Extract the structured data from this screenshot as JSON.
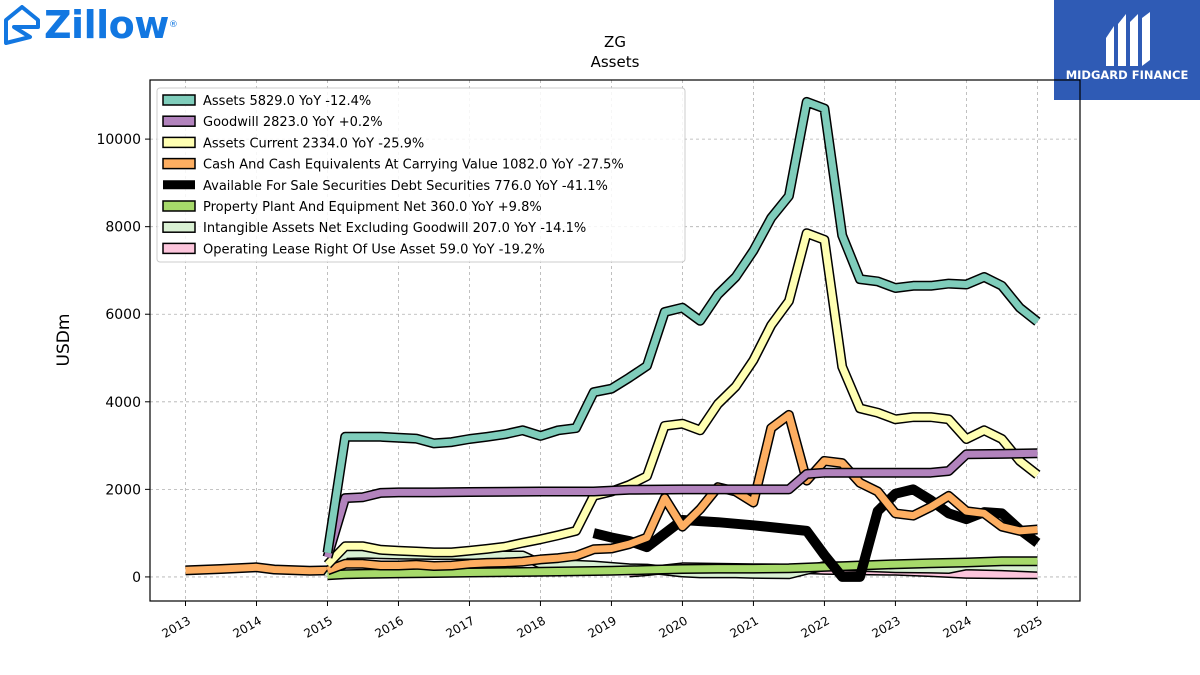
{
  "brand": {
    "name": "Zillow",
    "reg_mark": "®",
    "icon": "zillow-house-icon",
    "color": "#1277e1"
  },
  "partner": {
    "name": "MIDGARD FINANCE",
    "bg": "#2f5bb5",
    "icon": "midgard-logo-icon"
  },
  "chart_data": {
    "type": "line",
    "title": "ZG",
    "subtitle": "Assets",
    "ylabel": "USDm",
    "xlabel": "",
    "xlim": [
      2012.5,
      2025.6
    ],
    "ylim": [
      -550,
      11350
    ],
    "yticks": [
      0,
      2000,
      4000,
      6000,
      8000,
      10000
    ],
    "xticks": [
      "2013",
      "2014",
      "2015",
      "2016",
      "2017",
      "2018",
      "2019",
      "2020",
      "2021",
      "2022",
      "2023",
      "2024",
      "2025"
    ],
    "grid": true,
    "legend_position": "top-left",
    "series": [
      {
        "name": "Assets",
        "legend": "Assets  5829.0 YoY -12.4%",
        "color": "#7fcdbb",
        "width": 7,
        "points": [
          [
            2015.0,
            550
          ],
          [
            2015.25,
            3200
          ],
          [
            2015.5,
            3200
          ],
          [
            2015.75,
            3200
          ],
          [
            2016.0,
            3180
          ],
          [
            2016.25,
            3160
          ],
          [
            2016.5,
            3050
          ],
          [
            2016.75,
            3080
          ],
          [
            2017.0,
            3150
          ],
          [
            2017.25,
            3200
          ],
          [
            2017.5,
            3260
          ],
          [
            2017.75,
            3350
          ],
          [
            2018.0,
            3220
          ],
          [
            2018.25,
            3350
          ],
          [
            2018.5,
            3400
          ],
          [
            2018.75,
            4220
          ],
          [
            2019.0,
            4300
          ],
          [
            2019.25,
            4550
          ],
          [
            2019.5,
            4820
          ],
          [
            2019.75,
            6050
          ],
          [
            2020.0,
            6150
          ],
          [
            2020.25,
            5850
          ],
          [
            2020.5,
            6450
          ],
          [
            2020.75,
            6850
          ],
          [
            2021.0,
            7450
          ],
          [
            2021.25,
            8200
          ],
          [
            2021.5,
            8700
          ],
          [
            2021.75,
            10850
          ],
          [
            2022.0,
            10700
          ],
          [
            2022.25,
            7800
          ],
          [
            2022.5,
            6800
          ],
          [
            2022.75,
            6750
          ],
          [
            2023.0,
            6600
          ],
          [
            2023.25,
            6650
          ],
          [
            2023.5,
            6650
          ],
          [
            2023.75,
            6700
          ],
          [
            2024.0,
            6680
          ],
          [
            2024.25,
            6850
          ],
          [
            2024.5,
            6650
          ],
          [
            2024.75,
            6150
          ],
          [
            2025.0,
            5829
          ]
        ]
      },
      {
        "name": "Goodwill",
        "legend": "Goodwill  2823.0 YoY +0.2%",
        "color": "#b283bd",
        "width": 7,
        "points": [
          [
            2015.0,
            450
          ],
          [
            2015.25,
            1800
          ],
          [
            2015.5,
            1820
          ],
          [
            2015.75,
            1920
          ],
          [
            2016.0,
            1930
          ],
          [
            2016.5,
            1930
          ],
          [
            2017.0,
            1940
          ],
          [
            2018.0,
            1950
          ],
          [
            2018.75,
            1950
          ],
          [
            2019.25,
            1990
          ],
          [
            2020.0,
            2000
          ],
          [
            2021.0,
            2000
          ],
          [
            2021.5,
            2000
          ],
          [
            2021.75,
            2350
          ],
          [
            2022.0,
            2380
          ],
          [
            2022.5,
            2380
          ],
          [
            2023.0,
            2380
          ],
          [
            2023.5,
            2380
          ],
          [
            2023.75,
            2420
          ],
          [
            2024.0,
            2800
          ],
          [
            2024.5,
            2810
          ],
          [
            2025.0,
            2823
          ]
        ]
      },
      {
        "name": "Assets Current",
        "legend": "Assets Current  2334.0 YoY -25.9%",
        "color": "#ffffb2",
        "width": 7,
        "points": [
          [
            2015.0,
            280
          ],
          [
            2015.25,
            700
          ],
          [
            2015.5,
            700
          ],
          [
            2015.75,
            620
          ],
          [
            2016.0,
            600
          ],
          [
            2016.25,
            580
          ],
          [
            2016.5,
            560
          ],
          [
            2016.75,
            560
          ],
          [
            2017.0,
            600
          ],
          [
            2017.25,
            640
          ],
          [
            2017.5,
            690
          ],
          [
            2017.75,
            780
          ],
          [
            2018.0,
            860
          ],
          [
            2018.25,
            950
          ],
          [
            2018.5,
            1050
          ],
          [
            2018.75,
            1850
          ],
          [
            2019.0,
            1950
          ],
          [
            2019.25,
            2100
          ],
          [
            2019.5,
            2300
          ],
          [
            2019.75,
            3450
          ],
          [
            2020.0,
            3500
          ],
          [
            2020.25,
            3350
          ],
          [
            2020.5,
            3950
          ],
          [
            2020.75,
            4350
          ],
          [
            2021.0,
            4950
          ],
          [
            2021.25,
            5750
          ],
          [
            2021.5,
            6300
          ],
          [
            2021.75,
            7850
          ],
          [
            2022.0,
            7700
          ],
          [
            2022.25,
            4800
          ],
          [
            2022.5,
            3850
          ],
          [
            2022.75,
            3750
          ],
          [
            2023.0,
            3600
          ],
          [
            2023.25,
            3650
          ],
          [
            2023.5,
            3650
          ],
          [
            2023.75,
            3600
          ],
          [
            2024.0,
            3150
          ],
          [
            2024.25,
            3350
          ],
          [
            2024.5,
            3150
          ],
          [
            2024.75,
            2650
          ],
          [
            2025.0,
            2334
          ]
        ]
      },
      {
        "name": "Cash And Cash Equivalents At Carrying Value",
        "legend": "Cash And Cash Equivalents At Carrying Value  1082.0 YoY -27.5%",
        "color": "#fdae61",
        "width": 7,
        "points": [
          [
            2015.0,
            150
          ],
          [
            2015.25,
            300
          ],
          [
            2015.5,
            300
          ],
          [
            2015.75,
            260
          ],
          [
            2016.0,
            260
          ],
          [
            2016.25,
            280
          ],
          [
            2016.5,
            250
          ],
          [
            2016.75,
            260
          ],
          [
            2017.0,
            300
          ],
          [
            2017.25,
            320
          ],
          [
            2017.5,
            330
          ],
          [
            2017.75,
            350
          ],
          [
            2018.0,
            400
          ],
          [
            2018.25,
            430
          ],
          [
            2018.5,
            480
          ],
          [
            2018.75,
            630
          ],
          [
            2019.0,
            650
          ],
          [
            2019.25,
            750
          ],
          [
            2019.5,
            900
          ],
          [
            2019.75,
            1800
          ],
          [
            2020.0,
            1150
          ],
          [
            2020.25,
            1550
          ],
          [
            2020.5,
            2050
          ],
          [
            2020.75,
            1950
          ],
          [
            2021.0,
            1700
          ],
          [
            2021.25,
            3400
          ],
          [
            2021.5,
            3700
          ],
          [
            2021.75,
            2200
          ],
          [
            2022.0,
            2650
          ],
          [
            2022.25,
            2600
          ],
          [
            2022.5,
            2150
          ],
          [
            2022.75,
            1950
          ],
          [
            2023.0,
            1450
          ],
          [
            2023.25,
            1400
          ],
          [
            2023.5,
            1600
          ],
          [
            2023.75,
            1850
          ],
          [
            2024.0,
            1500
          ],
          [
            2024.25,
            1450
          ],
          [
            2024.5,
            1150
          ],
          [
            2024.75,
            1050
          ],
          [
            2025.0,
            1082
          ]
        ]
      },
      {
        "name": "Available For Sale Securities Debt Securities",
        "legend": "Available For Sale Securities Debt Securities  776.0 YoY -41.1%",
        "color": "#000000",
        "width": 10,
        "points": [
          [
            2018.75,
            1000
          ],
          [
            2019.0,
            900
          ],
          [
            2019.25,
            820
          ],
          [
            2019.5,
            680
          ],
          [
            2020.0,
            1300
          ],
          [
            2020.5,
            1250
          ],
          [
            2021.0,
            1180
          ],
          [
            2021.75,
            1050
          ],
          [
            2022.0,
            500
          ],
          [
            2022.25,
            0
          ],
          [
            2022.5,
            0
          ],
          [
            2022.75,
            1500
          ],
          [
            2023.0,
            1900
          ],
          [
            2023.25,
            2000
          ],
          [
            2023.5,
            1750
          ],
          [
            2023.75,
            1450
          ],
          [
            2024.0,
            1320
          ],
          [
            2024.25,
            1480
          ],
          [
            2024.5,
            1450
          ],
          [
            2024.75,
            1080
          ],
          [
            2025.0,
            776
          ]
        ]
      },
      {
        "name": "Property Plant And Equipment Net",
        "legend": "Property Plant And Equipment Net  360.0 YoY +9.8%",
        "color": "#a6d96a",
        "width": 7,
        "points": [
          [
            2015.0,
            40
          ],
          [
            2015.25,
            60
          ],
          [
            2015.5,
            70
          ],
          [
            2016.0,
            80
          ],
          [
            2016.5,
            90
          ],
          [
            2017.0,
            100
          ],
          [
            2017.5,
            110
          ],
          [
            2018.0,
            120
          ],
          [
            2018.5,
            130
          ],
          [
            2019.0,
            140
          ],
          [
            2019.5,
            160
          ],
          [
            2020.0,
            180
          ],
          [
            2020.5,
            190
          ],
          [
            2021.0,
            190
          ],
          [
            2021.5,
            200
          ],
          [
            2022.0,
            230
          ],
          [
            2022.5,
            260
          ],
          [
            2023.0,
            290
          ],
          [
            2023.5,
            310
          ],
          [
            2024.0,
            330
          ],
          [
            2024.5,
            360
          ],
          [
            2025.0,
            360
          ]
        ]
      },
      {
        "name": "Intangible Assets Net Excluding Goodwill",
        "legend": "Intangible Assets Net Excluding Goodwill  207.0 YoY -14.1%",
        "color": "#d9f0d3",
        "width": 7,
        "points": [
          [
            2015.0,
            0
          ],
          [
            2015.25,
            520
          ],
          [
            2015.5,
            530
          ],
          [
            2015.75,
            520
          ],
          [
            2016.0,
            510
          ],
          [
            2016.5,
            500
          ],
          [
            2017.0,
            500
          ],
          [
            2017.5,
            490
          ],
          [
            2017.75,
            490
          ],
          [
            2018.0,
            300
          ],
          [
            2018.5,
            280
          ],
          [
            2018.75,
            260
          ],
          [
            2019.0,
            230
          ],
          [
            2019.25,
            200
          ],
          [
            2019.5,
            190
          ],
          [
            2020.0,
            100
          ],
          [
            2020.25,
            80
          ],
          [
            2020.75,
            80
          ],
          [
            2021.0,
            70
          ],
          [
            2021.5,
            60
          ],
          [
            2021.75,
            160
          ],
          [
            2022.0,
            250
          ],
          [
            2022.5,
            230
          ],
          [
            2023.0,
            200
          ],
          [
            2023.5,
            190
          ],
          [
            2023.75,
            180
          ],
          [
            2024.0,
            260
          ],
          [
            2024.5,
            240
          ],
          [
            2025.0,
            207
          ]
        ]
      },
      {
        "name": "Operating Lease Right Of Use Asset",
        "legend": "Operating Lease Right Of Use Asset  59.0 YoY -19.2%",
        "color": "#fcc5dc",
        "width": 7,
        "points": [
          [
            2019.25,
            100
          ],
          [
            2019.5,
            130
          ],
          [
            2020.0,
            220
          ],
          [
            2020.5,
            210
          ],
          [
            2021.0,
            200
          ],
          [
            2021.5,
            190
          ],
          [
            2022.0,
            160
          ],
          [
            2022.5,
            150
          ],
          [
            2023.0,
            140
          ],
          [
            2023.5,
            110
          ],
          [
            2024.0,
            70
          ],
          [
            2024.5,
            60
          ],
          [
            2025.0,
            59
          ]
        ]
      }
    ],
    "pre2015_series": {
      "name": "Cash And Cash Equivalents At Carrying Value (early)",
      "color": "#fdae61",
      "points": [
        [
          2013.0,
          150
        ],
        [
          2013.5,
          180
        ],
        [
          2014.0,
          220
        ],
        [
          2014.25,
          170
        ],
        [
          2014.75,
          140
        ],
        [
          2015.0,
          150
        ]
      ]
    }
  }
}
